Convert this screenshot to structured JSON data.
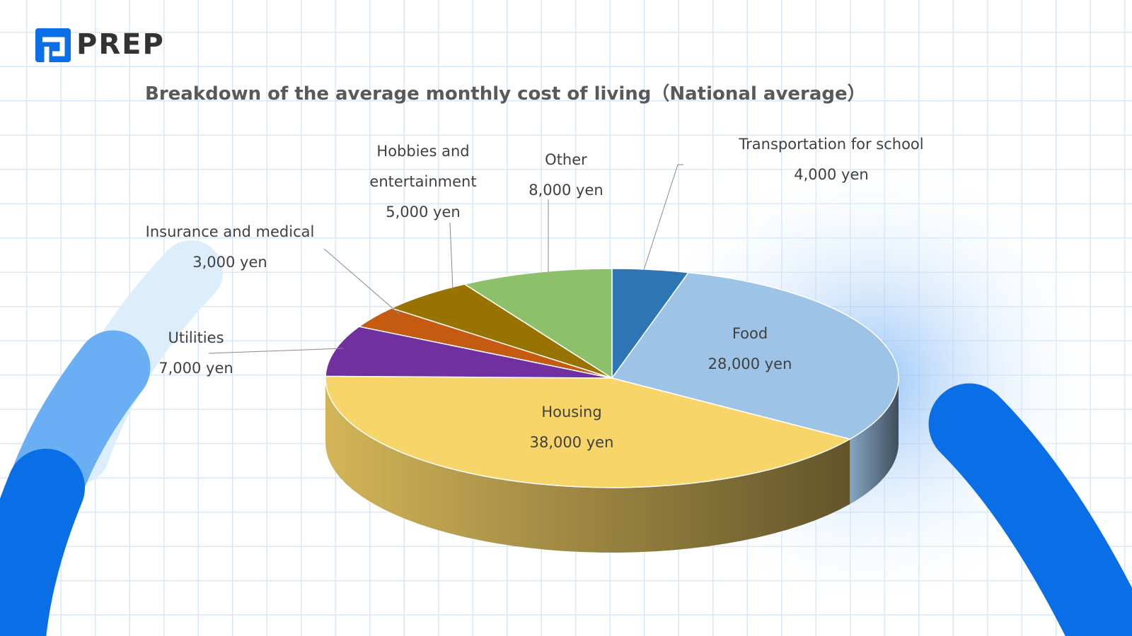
{
  "logo": "PREP",
  "chart_data": {
    "type": "pie3d",
    "title": "Breakdown of the average monthly cost of living（National average）",
    "categories": [
      "Transportation for school",
      "Food",
      "Housing",
      "Utilities",
      "Insurance and medical",
      "Hobbies and entertainment",
      "Other"
    ],
    "values": [
      4000,
      28000,
      38000,
      7000,
      3000,
      5000,
      8000
    ],
    "value_labels": [
      "4,000 yen",
      "28,000 yen",
      "38,000 yen",
      "7,000 yen",
      "3,000 yen",
      "5,000 yen",
      "8,000 yen"
    ],
    "colors": [
      "#2e75b6",
      "#9dc3e6",
      "#f8d568",
      "#7030a0",
      "#c55a11",
      "#997300",
      "#8cc06a"
    ]
  }
}
